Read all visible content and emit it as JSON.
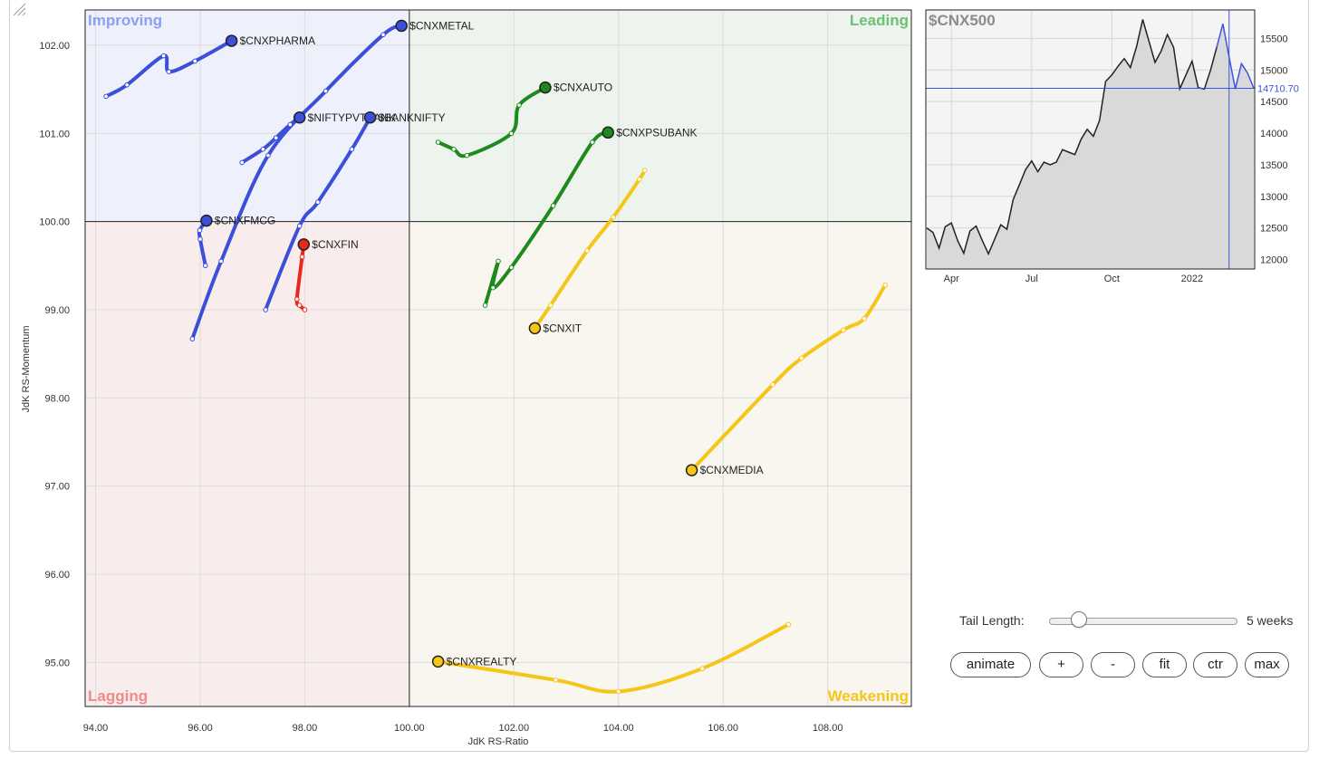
{
  "chart_data": [
    {
      "type": "scatter",
      "subtype": "relative-rotation-graph",
      "xlabel": "JdK RS-Ratio",
      "ylabel": "JdK RS-Momentum",
      "xlim": [
        93.8,
        109.6
      ],
      "ylim": [
        94.5,
        102.4
      ],
      "center": [
        100,
        100
      ],
      "x_ticks": [
        94,
        96,
        98,
        100,
        102,
        104,
        106,
        108
      ],
      "y_ticks": [
        95,
        96,
        97,
        98,
        99,
        100,
        101,
        102
      ],
      "quadrants": {
        "improving": {
          "label": "Improving",
          "color": "#8da0f0",
          "fill": "#eef0fb"
        },
        "leading": {
          "label": "Leading",
          "color": "#6fbf73",
          "fill": "#edf4ee"
        },
        "weakening": {
          "label": "Weakening",
          "color": "#f5c518",
          "fill": "#f8f6ee"
        },
        "lagging": {
          "label": "Lagging",
          "color": "#f08a8a",
          "fill": "#f8ecec"
        }
      },
      "series": [
        {
          "name": "$CNXPHARMA",
          "color": "#3b4fd8",
          "points": [
            [
              94.2,
              101.42
            ],
            [
              94.6,
              101.55
            ],
            [
              95.3,
              101.88
            ],
            [
              95.4,
              101.7
            ],
            [
              95.9,
              101.82
            ],
            [
              96.6,
              102.05
            ]
          ]
        },
        {
          "name": "$CNXMETAL",
          "color": "#3b4fd8",
          "points": [
            [
              95.85,
              98.67
            ],
            [
              96.4,
              99.55
            ],
            [
              97.3,
              100.75
            ],
            [
              98.4,
              101.48
            ],
            [
              99.5,
              102.12
            ],
            [
              99.85,
              102.22
            ]
          ]
        },
        {
          "name": "$NIFTYPVTBANK",
          "color": "#3b4fd8",
          "points": [
            [
              96.8,
              100.67
            ],
            [
              97.2,
              100.82
            ],
            [
              97.45,
              100.95
            ],
            [
              97.72,
              101.1
            ],
            [
              97.9,
              101.18
            ]
          ]
        },
        {
          "name": "$BANKNIFTY",
          "color": "#3b4fd8",
          "points": [
            [
              97.25,
              99.0
            ],
            [
              97.9,
              99.95
            ],
            [
              98.25,
              100.22
            ],
            [
              98.9,
              100.82
            ],
            [
              99.25,
              101.18
            ]
          ]
        },
        {
          "name": "$CNXFMCG",
          "color": "#3b4fd8",
          "points": [
            [
              96.1,
              99.5
            ],
            [
              96.0,
              99.8
            ],
            [
              95.99,
              99.9
            ],
            [
              96.12,
              100.01
            ]
          ]
        },
        {
          "name": "$CNXFIN",
          "color": "#e8281d",
          "points": [
            [
              98.0,
              99.0
            ],
            [
              97.9,
              99.05
            ],
            [
              97.85,
              99.12
            ],
            [
              97.95,
              99.6
            ],
            [
              97.98,
              99.74
            ]
          ]
        },
        {
          "name": "$CNXAUTO",
          "color": "#1e8a1e",
          "points": [
            [
              100.55,
              100.9
            ],
            [
              100.85,
              100.82
            ],
            [
              101.1,
              100.75
            ],
            [
              101.95,
              101.0
            ],
            [
              102.1,
              101.32
            ],
            [
              102.6,
              101.52
            ]
          ]
        },
        {
          "name": "$CNXPSUBANK",
          "color": "#1e8a1e",
          "points": [
            [
              101.45,
              99.05
            ],
            [
              101.7,
              99.55
            ],
            [
              101.6,
              99.25
            ],
            [
              101.95,
              99.48
            ],
            [
              102.75,
              100.18
            ],
            [
              103.5,
              100.9
            ],
            [
              103.8,
              101.01
            ]
          ]
        },
        {
          "name": "$CNXIT",
          "color": "#f5c518",
          "points": [
            [
              104.5,
              100.58
            ],
            [
              104.4,
              100.48
            ],
            [
              103.9,
              100.05
            ],
            [
              103.4,
              99.67
            ],
            [
              102.7,
              99.05
            ],
            [
              102.4,
              98.79
            ]
          ]
        },
        {
          "name": "$CNXMEDIA",
          "color": "#f5c518",
          "points": [
            [
              109.1,
              99.28
            ],
            [
              108.7,
              98.9
            ],
            [
              108.3,
              98.77
            ],
            [
              107.5,
              98.45
            ],
            [
              106.95,
              98.15
            ],
            [
              105.4,
              97.18
            ]
          ]
        },
        {
          "name": "$CNXREALTY",
          "color": "#f5c518",
          "points": [
            [
              107.25,
              95.43
            ],
            [
              105.6,
              94.93
            ],
            [
              104.0,
              94.67
            ],
            [
              102.8,
              94.8
            ],
            [
              100.55,
              95.01
            ]
          ]
        }
      ]
    },
    {
      "type": "area",
      "title": "$CNX500",
      "x_ticks": [
        "Apr",
        "Jul",
        "Oct",
        "2022"
      ],
      "y_ticks": [
        12000,
        12500,
        13000,
        13500,
        14000,
        14500,
        15000,
        15500
      ],
      "ylim": [
        11850,
        15950
      ],
      "current_value_label": "14710.70",
      "current_value": 14710.7,
      "values": [
        12500,
        12430,
        12180,
        12520,
        12580,
        12300,
        12100,
        12450,
        12530,
        12300,
        12090,
        12320,
        12550,
        12480,
        12950,
        13180,
        13420,
        13560,
        13390,
        13540,
        13500,
        13540,
        13740,
        13700,
        13660,
        13900,
        14060,
        13950,
        14200,
        14820,
        14920,
        15060,
        15180,
        15040,
        15370,
        15800,
        15460,
        15120,
        15300,
        15560,
        15360,
        14700,
        14920,
        15140,
        14720,
        14700,
        15000,
        15360,
        15730,
        15200,
        14700,
        15100,
        14950,
        14710
      ]
    }
  ],
  "controls": {
    "tail_length_label": "Tail Length:",
    "tail_length_value": "5 weeks",
    "tail_length_weeks": 5,
    "tail_length_min": 1,
    "tail_length_max": 52,
    "buttons": [
      "animate",
      "+",
      "-",
      "fit",
      "ctr",
      "max"
    ]
  }
}
